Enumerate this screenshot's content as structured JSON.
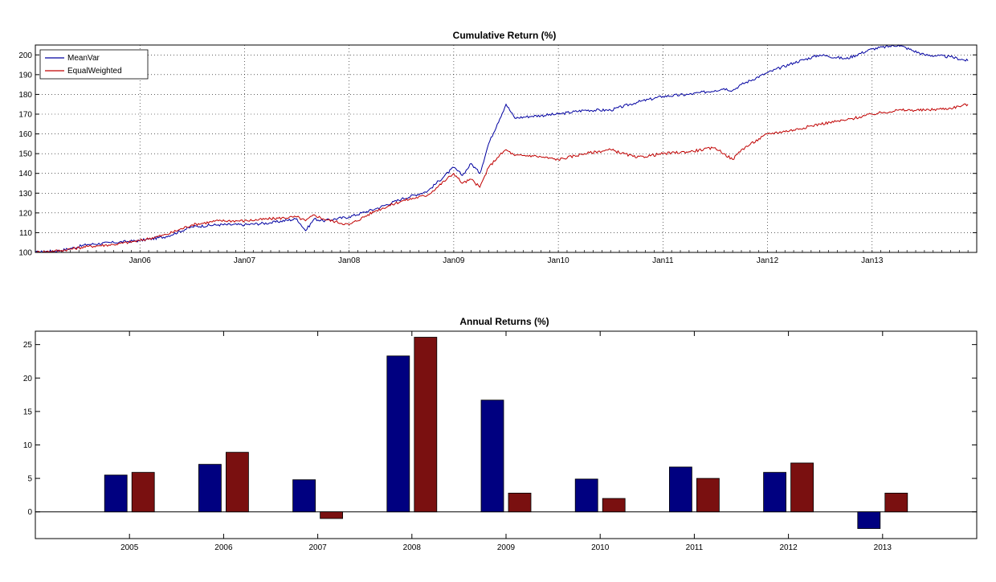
{
  "chart_data": [
    {
      "type": "line",
      "title": "Cumulative Return (%)",
      "xlabel": "",
      "ylabel": "",
      "x_ticks": [
        "Jan06",
        "Jan07",
        "Jan08",
        "Jan09",
        "Jan10",
        "Jan11",
        "Jan12",
        "Jan13"
      ],
      "xlim": [
        "2005-01",
        "2013-12"
      ],
      "ylim": [
        100,
        205
      ],
      "y_ticks": [
        100,
        110,
        120,
        130,
        140,
        150,
        160,
        170,
        180,
        190,
        200
      ],
      "grid": true,
      "legend": "top-left",
      "x": [
        "2005-01",
        "2005-04",
        "2005-07",
        "2005-10",
        "2006-01",
        "2006-04",
        "2006-07",
        "2006-10",
        "2007-01",
        "2007-04",
        "2007-07",
        "2007-08",
        "2007-09",
        "2007-10",
        "2008-01",
        "2008-04",
        "2008-07",
        "2008-10",
        "2009-01",
        "2009-02",
        "2009-03",
        "2009-04",
        "2009-05",
        "2009-06",
        "2009-07",
        "2009-08",
        "2009-10",
        "2010-01",
        "2010-04",
        "2010-07",
        "2010-10",
        "2011-01",
        "2011-04",
        "2011-07",
        "2011-08",
        "2011-09",
        "2011-10",
        "2012-01",
        "2012-04",
        "2012-07",
        "2012-10",
        "2013-01",
        "2013-04",
        "2013-07",
        "2013-10",
        "2013-12"
      ],
      "series": [
        {
          "name": "MeanVar",
          "color": "#0000a0",
          "values": [
            100,
            101,
            104,
            105,
            106,
            108,
            113,
            114,
            114,
            115,
            117,
            111,
            117,
            116,
            118,
            122,
            127,
            131,
            143,
            139,
            145,
            140,
            155,
            165,
            175,
            168,
            169,
            170,
            172,
            172,
            176,
            179,
            180,
            182,
            183,
            182,
            185,
            191,
            196,
            200,
            198,
            203,
            205,
            200,
            199,
            197
          ]
        },
        {
          "name": "EqualWeighted",
          "color": "#c00000",
          "values": [
            100,
            101,
            103,
            104,
            106,
            109,
            114,
            116,
            116,
            117,
            118,
            116,
            119,
            117,
            114,
            121,
            126,
            129,
            140,
            135,
            137,
            133,
            143,
            148,
            152,
            149,
            149,
            147,
            150,
            152,
            148,
            150,
            151,
            153,
            150,
            147,
            152,
            160,
            162,
            165,
            167,
            170,
            172,
            172,
            173,
            175
          ]
        }
      ]
    },
    {
      "type": "bar",
      "title": "Annual Returns (%)",
      "xlabel": "",
      "ylabel": "",
      "categories": [
        "2005",
        "2006",
        "2007",
        "2008",
        "2009",
        "2010",
        "2011",
        "2012",
        "2013"
      ],
      "ylim": [
        -4,
        27
      ],
      "y_ticks": [
        0,
        5,
        10,
        15,
        20,
        25
      ],
      "grid": false,
      "series": [
        {
          "name": "MeanVar",
          "color": "#000080",
          "values": [
            5.5,
            7.1,
            4.8,
            23.3,
            16.7,
            4.9,
            6.7,
            5.9,
            -2.5
          ]
        },
        {
          "name": "EqualWeighted",
          "color": "#7a1010",
          "values": [
            5.9,
            8.9,
            -1.0,
            26.1,
            2.8,
            2.0,
            5.0,
            7.3,
            2.8
          ]
        }
      ]
    }
  ]
}
